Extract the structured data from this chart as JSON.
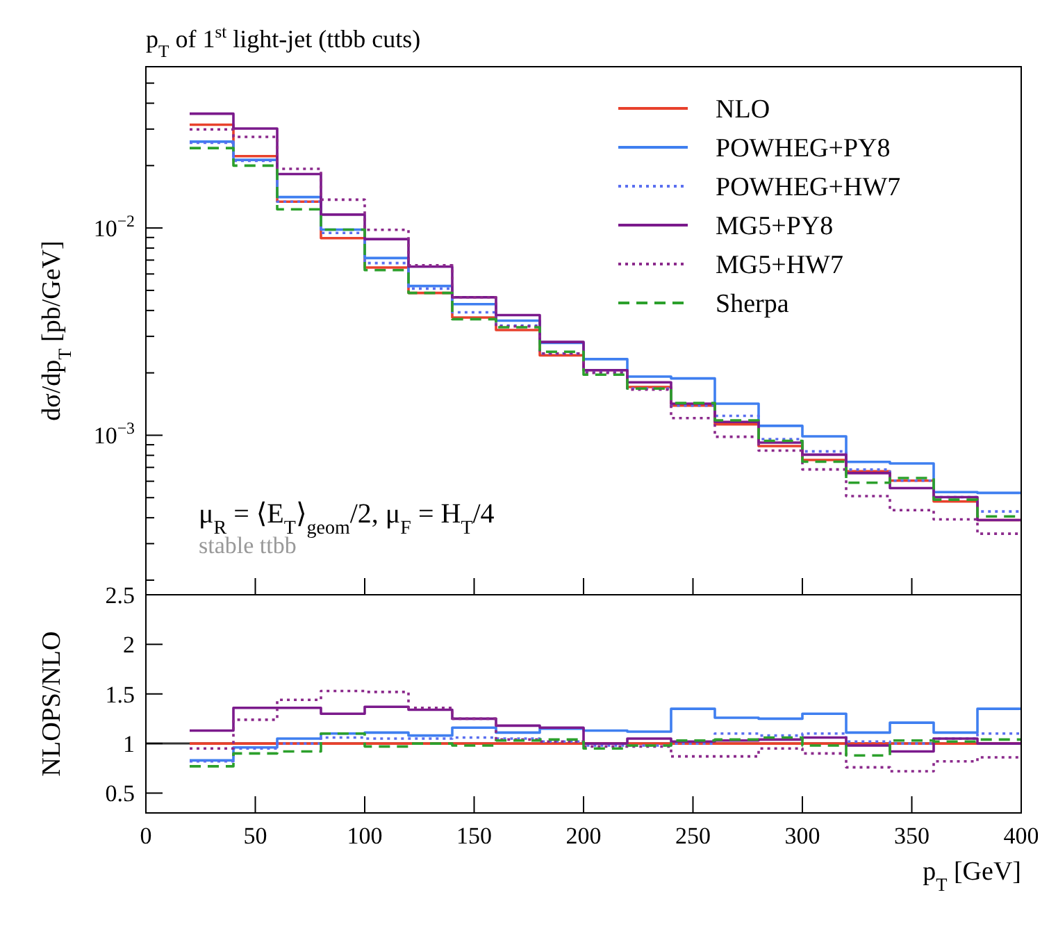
{
  "chart_data": [
    {
      "type": "histogram",
      "title": "p$_{T}$ of 1$^{st}$ light-jet (ttbb cuts)",
      "ylabel": "dσ/dp$_{T}$ [pb/GeV]",
      "log": "y",
      "legend": "top right",
      "tick_labels": "y",
      "bins": [
        20,
        40,
        60,
        80,
        100,
        120,
        140,
        160,
        180,
        200,
        220,
        240,
        260,
        280,
        300,
        320,
        340,
        360,
        380,
        400
      ],
      "xlim": [
        0,
        400
      ],
      "xticks": [
        {
          "value": 0,
          "label": null
        },
        {
          "value": 50,
          "label": null
        },
        {
          "value": 100,
          "label": null
        },
        {
          "value": 150,
          "label": null
        },
        {
          "value": 200,
          "label": null
        },
        {
          "value": 250,
          "label": null
        },
        {
          "value": 300,
          "label": null
        },
        {
          "value": 350,
          "label": null
        },
        {
          "value": 400,
          "label": null
        }
      ],
      "ylim": [
        0.00017,
        0.06
      ],
      "yticks": [
        {
          "value": 0.0002,
          "label": null
        },
        {
          "value": 0.0003,
          "label": null
        },
        {
          "value": 0.0004,
          "label": null
        },
        {
          "value": 0.0005,
          "label": null
        },
        {
          "value": 0.0006,
          "label": null
        },
        {
          "value": 0.0007,
          "label": null
        },
        {
          "value": 0.0008,
          "label": null
        },
        {
          "value": 0.0009,
          "label": null
        },
        {
          "value": 0.001,
          "label": "10$^{−3}$"
        },
        {
          "value": 0.002,
          "label": null
        },
        {
          "value": 0.003,
          "label": null
        },
        {
          "value": 0.004,
          "label": null
        },
        {
          "value": 0.005,
          "label": null
        },
        {
          "value": 0.006,
          "label": null
        },
        {
          "value": 0.007,
          "label": null
        },
        {
          "value": 0.008,
          "label": null
        },
        {
          "value": 0.009,
          "label": null
        },
        {
          "value": 0.01,
          "label": "10$^{−2}$"
        },
        {
          "value": 0.02,
          "label": null
        },
        {
          "value": 0.03,
          "label": null
        },
        {
          "value": 0.04,
          "label": null
        },
        {
          "value": 0.05,
          "label": null
        }
      ],
      "annotations": [
        "μ$_{R}$ = ⟨E$_{T}$⟩$_{geom}$/2, μ$_{F}$ = H$_{T}$/4",
        "stable ttbb"
      ],
      "series": [
        {
          "name": "NLO",
          "color": "#e8412c",
          "line_style": "solid",
          "values": [
            0.0315,
            0.0222,
            0.0134,
            0.00893,
            0.00645,
            0.00486,
            0.0037,
            0.00322,
            0.00243,
            0.00206,
            0.00171,
            0.00139,
            0.00113,
            0.000887,
            0.00076,
            0.00067,
            0.000604,
            0.000479,
            0.00039
          ]
        },
        {
          "name": "POWHEG+PY8",
          "color": "#3f7ff0",
          "line_style": "solid",
          "values": [
            0.0261,
            0.0213,
            0.0141,
            0.00982,
            0.00716,
            0.00525,
            0.00429,
            0.00357,
            0.00279,
            0.00233,
            0.00192,
            0.00188,
            0.00142,
            0.00111,
            0.000988,
            0.000744,
            0.000731,
            0.000532,
            0.000527
          ]
        },
        {
          "name": "POWHEG+HW7",
          "color": "#5a6ff0",
          "line_style": "dotted",
          "values": [
            0.0258,
            0.0211,
            0.0134,
            0.00947,
            0.00677,
            0.0051,
            0.00392,
            0.00338,
            0.00248,
            0.00202,
            0.00168,
            0.00139,
            0.00124,
            0.000958,
            0.000836,
            0.000683,
            0.000604,
            0.000503,
            0.000429
          ]
        },
        {
          "name": "MG5+PY8",
          "color": "#7b1a8c",
          "line_style": "solid",
          "values": [
            0.0356,
            0.0302,
            0.0182,
            0.0116,
            0.00884,
            0.00651,
            0.00463,
            0.0038,
            0.00282,
            0.00206,
            0.0018,
            0.00142,
            0.00116,
            0.000922,
            0.000806,
            0.000657,
            0.000556,
            0.000503,
            0.00039
          ]
        },
        {
          "name": "MG5+HW7",
          "color": "#8b2a8c",
          "line_style": "dotted",
          "values": [
            0.0299,
            0.0275,
            0.0193,
            0.0137,
            0.0098,
            0.00661,
            0.00463,
            0.00335,
            0.00248,
            0.002,
            0.00166,
            0.00121,
            0.000983,
            0.000843,
            0.000684,
            0.000509,
            0.000435,
            0.000393,
            0.000335
          ]
        },
        {
          "name": "Sherpa",
          "color": "#2ca02c",
          "line_style": "dashed",
          "values": [
            0.0243,
            0.02,
            0.0123,
            0.00982,
            0.00626,
            0.00486,
            0.00363,
            0.00332,
            0.00253,
            0.00196,
            0.00168,
            0.00143,
            0.00118,
            0.00094,
            0.000745,
            0.00059,
            0.000622,
            0.000489,
            0.000406
          ]
        }
      ]
    },
    {
      "type": "histogram",
      "xlabel": "p$_{T}$ [GeV]",
      "ylabel": "NLOPS/NLO",
      "bins": [
        20,
        40,
        60,
        80,
        100,
        120,
        140,
        160,
        180,
        200,
        220,
        240,
        260,
        280,
        300,
        320,
        340,
        360,
        380,
        400
      ],
      "xlim": [
        0,
        400
      ],
      "xticks": [
        0,
        50,
        100,
        150,
        200,
        250,
        300,
        350,
        400
      ],
      "ylim": [
        0.3,
        2.5
      ],
      "yticks": [
        0.5,
        1,
        1.5,
        2,
        2.5
      ],
      "ref_lines": [
        {
          "axis": "y",
          "value": 1,
          "label": null,
          "color": "#333333"
        }
      ],
      "series": [
        {
          "color": "#e8412c",
          "line_style": "solid",
          "values": [
            1,
            1,
            1,
            1,
            1,
            1,
            1,
            1,
            1,
            1,
            1,
            1,
            1,
            1,
            1,
            1,
            1,
            1,
            1
          ]
        },
        {
          "color": "#3f7ff0",
          "line_style": "solid",
          "values": [
            0.83,
            0.96,
            1.05,
            1.1,
            1.11,
            1.08,
            1.16,
            1.11,
            1.15,
            1.13,
            1.12,
            1.35,
            1.26,
            1.25,
            1.3,
            1.11,
            1.21,
            1.11,
            1.35
          ]
        },
        {
          "color": "#5a6ff0",
          "line_style": "dotted",
          "values": [
            0.82,
            0.95,
            1.0,
            1.06,
            1.05,
            1.05,
            1.06,
            1.05,
            1.02,
            0.98,
            0.98,
            1.0,
            1.1,
            1.08,
            1.1,
            1.02,
            1.0,
            1.05,
            1.1
          ]
        },
        {
          "color": "#7b1a8c",
          "line_style": "solid",
          "values": [
            1.13,
            1.36,
            1.36,
            1.3,
            1.37,
            1.34,
            1.25,
            1.18,
            1.16,
            1.0,
            1.05,
            1.02,
            1.03,
            1.04,
            1.06,
            0.98,
            0.92,
            1.05,
            1.0
          ]
        },
        {
          "color": "#8b2a8c",
          "line_style": "dotted",
          "values": [
            0.95,
            1.24,
            1.44,
            1.53,
            1.52,
            1.36,
            1.25,
            1.04,
            1.02,
            0.97,
            0.97,
            0.87,
            0.87,
            0.95,
            0.9,
            0.76,
            0.72,
            0.82,
            0.86
          ]
        },
        {
          "color": "#2ca02c",
          "line_style": "dashed",
          "values": [
            0.77,
            0.9,
            0.92,
            1.1,
            0.97,
            1.0,
            0.98,
            1.03,
            1.04,
            0.95,
            0.98,
            1.03,
            1.04,
            1.06,
            0.98,
            0.88,
            1.03,
            1.02,
            1.04
          ]
        }
      ]
    }
  ]
}
